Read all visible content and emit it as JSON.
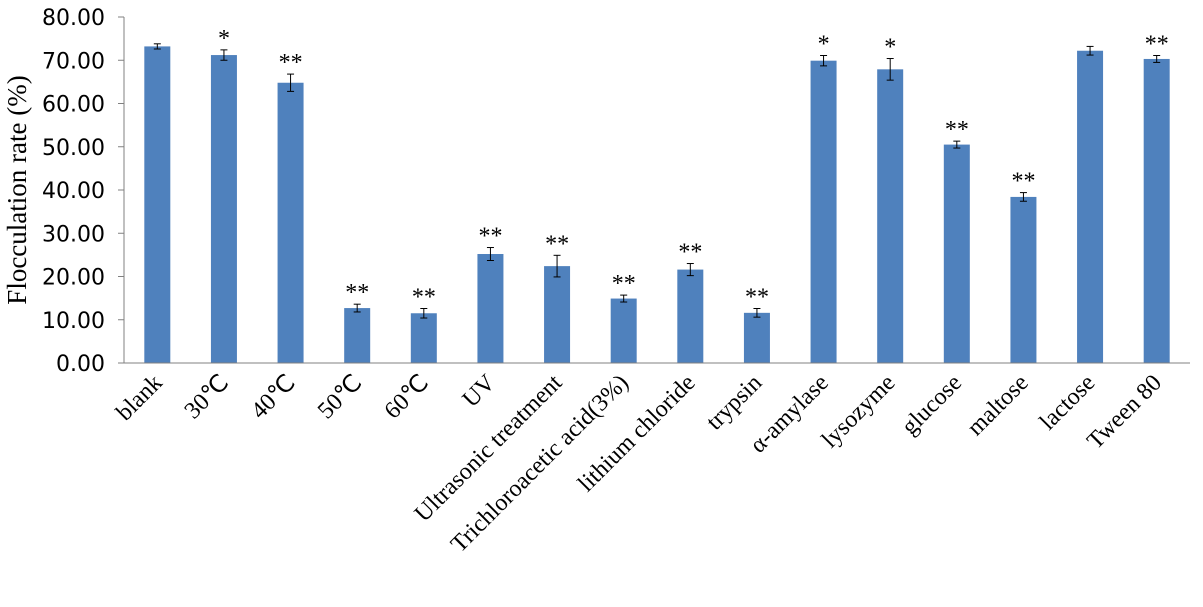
{
  "chart_data": {
    "type": "bar",
    "title": "",
    "xlabel": "",
    "ylabel": "Flocculation  rate (%)",
    "ylim": [
      0,
      80
    ],
    "yticks": [
      "0.00",
      "10.00",
      "20.00",
      "30.00",
      "40.00",
      "50.00",
      "60.00",
      "70.00",
      "80.00"
    ],
    "grid": false,
    "legend": "none",
    "categories": [
      "blank",
      "30℃",
      "40℃",
      "50℃",
      "60℃",
      "UV",
      "Ultrasonic treatment",
      "Trichloroacetic  acid(3%)",
      "lithium chloride",
      "trypsin",
      "α-amylase",
      "lysozyme",
      "glucose",
      "maltose",
      "lactose",
      "Tween 80"
    ],
    "values": [
      73.2,
      71.2,
      64.8,
      12.7,
      11.5,
      25.2,
      22.4,
      14.9,
      21.6,
      11.6,
      69.9,
      67.9,
      50.5,
      38.4,
      72.2,
      70.3
    ],
    "errors": [
      0.6,
      1.2,
      2.0,
      0.9,
      1.1,
      1.5,
      2.5,
      0.8,
      1.4,
      1.0,
      1.2,
      2.5,
      0.8,
      1.0,
      1.0,
      0.8
    ],
    "significance": [
      "",
      "*",
      "**",
      "**",
      "**",
      "**",
      "**",
      "**",
      "**",
      "**",
      "*",
      "*",
      "**",
      "**",
      "",
      "**"
    ],
    "colors": {
      "bar": "#4F81BD",
      "axis": "#808080",
      "error": "#000000"
    }
  }
}
